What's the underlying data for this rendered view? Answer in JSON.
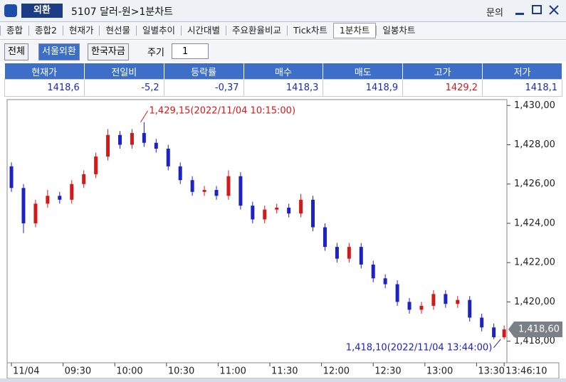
{
  "window": {
    "tab": "외환",
    "title": "5107 달러-원>1분차트",
    "menu": "문의"
  },
  "tabs": [
    "종합",
    "종합2",
    "현재가",
    "현선물",
    "일별추이",
    "시간대별",
    "주요환율비교",
    "Tick차트",
    "1분차트",
    "일봉차트"
  ],
  "active_tab": "1분차트",
  "toolbar": {
    "filters": [
      "전체",
      "서울외환",
      "한국자금"
    ],
    "period_label": "주기",
    "period_value": "1"
  },
  "quote_table": {
    "headers": [
      "현재가",
      "전일비",
      "등락률",
      "매수",
      "매도",
      "고가",
      "저가"
    ],
    "values": [
      "1418,6",
      "-5,2",
      "-0,37",
      "1418,3",
      "1418,9",
      "1429,2",
      "1418,1"
    ]
  },
  "chart_data": {
    "type": "candlestick",
    "x": [
      0,
      7,
      14,
      21,
      28,
      35,
      42,
      49,
      56,
      63,
      70,
      77,
      84,
      91,
      98,
      105,
      112,
      119,
      126,
      133,
      140,
      147,
      154,
      161,
      168,
      175,
      182,
      189,
      196,
      203,
      210,
      217,
      224,
      231,
      238,
      245,
      252,
      259,
      266,
      273,
      280,
      286
    ],
    "open": [
      1426.9,
      1425.8,
      1424.0,
      1425.0,
      1425.4,
      1425.2,
      1426.0,
      1426.5,
      1427.4,
      1428.5,
      1428.0,
      1428.6,
      1428.1,
      1427.8,
      1426.9,
      1426.2,
      1425.6,
      1425.7,
      1425.4,
      1426.4,
      1424.9,
      1424.2,
      1424.7,
      1424.8,
      1424.5,
      1425.2,
      1423.8,
      1422.8,
      1422.2,
      1422.8,
      1421.9,
      1421.2,
      1420.9,
      1420.0,
      1419.6,
      1419.8,
      1420.4,
      1419.9,
      1420.1,
      1419.2,
      1418.7,
      1418.2
    ],
    "high": [
      1427.1,
      1426.0,
      1425.2,
      1425.7,
      1425.6,
      1426.2,
      1426.7,
      1427.6,
      1428.8,
      1428.7,
      1428.8,
      1429.15,
      1428.3,
      1428.0,
      1427.1,
      1426.4,
      1425.9,
      1425.9,
      1426.7,
      1426.6,
      1425.1,
      1424.9,
      1425.0,
      1425.0,
      1425.5,
      1425.4,
      1424.0,
      1423.0,
      1423.0,
      1423.0,
      1422.1,
      1421.4,
      1421.1,
      1420.2,
      1420.0,
      1420.6,
      1420.6,
      1420.3,
      1420.3,
      1419.4,
      1418.9,
      1418.8
    ],
    "low": [
      1425.6,
      1423.5,
      1423.8,
      1424.8,
      1425.0,
      1425.0,
      1425.8,
      1426.3,
      1427.2,
      1427.8,
      1427.8,
      1427.9,
      1427.6,
      1426.7,
      1426.0,
      1425.4,
      1425.4,
      1425.2,
      1425.2,
      1424.7,
      1424.0,
      1424.0,
      1424.5,
      1424.3,
      1424.3,
      1423.6,
      1422.6,
      1422.0,
      1422.0,
      1421.7,
      1421.0,
      1420.7,
      1419.8,
      1419.4,
      1419.4,
      1419.6,
      1419.7,
      1419.7,
      1419.0,
      1418.5,
      1418.1,
      1418.1
    ],
    "close": [
      1425.8,
      1424.0,
      1425.0,
      1425.4,
      1425.2,
      1426.0,
      1426.5,
      1427.4,
      1428.5,
      1428.0,
      1428.6,
      1428.1,
      1427.8,
      1426.9,
      1426.2,
      1425.6,
      1425.7,
      1425.4,
      1426.4,
      1424.9,
      1424.2,
      1424.7,
      1424.8,
      1424.5,
      1425.2,
      1423.8,
      1422.8,
      1422.2,
      1422.8,
      1421.9,
      1421.2,
      1420.9,
      1420.0,
      1419.6,
      1419.8,
      1420.4,
      1419.9,
      1420.1,
      1419.2,
      1418.7,
      1418.2,
      1418.6
    ],
    "up_color": "#d21a1a",
    "down_color": "#1c22c4",
    "xlim": [
      -2.5,
      287.6
    ],
    "ylim": [
      1416.9,
      1430.3
    ],
    "xticks": [
      {
        "value": 0,
        "label": "11/04"
      },
      {
        "value": 30,
        "label": "09:30"
      },
      {
        "value": 60,
        "label": "10:00"
      },
      {
        "value": 90,
        "label": "10:30"
      },
      {
        "value": 120,
        "label": "11:00"
      },
      {
        "value": 150,
        "label": "11:30"
      },
      {
        "value": 180,
        "label": "12:00"
      },
      {
        "value": 210,
        "label": "12:30"
      },
      {
        "value": 240,
        "label": "13:00"
      },
      {
        "value": 270,
        "label": "13:30"
      },
      {
        "value": 286,
        "label": "13:46:10"
      }
    ],
    "yticks": [
      {
        "value": 1418,
        "label": "1,418,00"
      },
      {
        "value": 1420,
        "label": "1,420,00"
      },
      {
        "value": 1422,
        "label": "1,422,00"
      },
      {
        "value": 1424,
        "label": "1,424,00"
      },
      {
        "value": 1426,
        "label": "1,426,00"
      },
      {
        "value": 1428,
        "label": "1,428,00"
      },
      {
        "value": 1430,
        "label": "1,430,00"
      }
    ],
    "last_price": {
      "value": 1418.6,
      "label": "1,418,60"
    },
    "annotations": [
      {
        "text": "1,429,15(2022/11/04 10:15:00)",
        "x": 75,
        "y": 1429.15,
        "color": "#d21a1a"
      },
      {
        "text": "1,418,10(2022/11/04 13:44:00)",
        "x": 284,
        "y": 1418.1,
        "color": "#1c22c4"
      }
    ]
  }
}
